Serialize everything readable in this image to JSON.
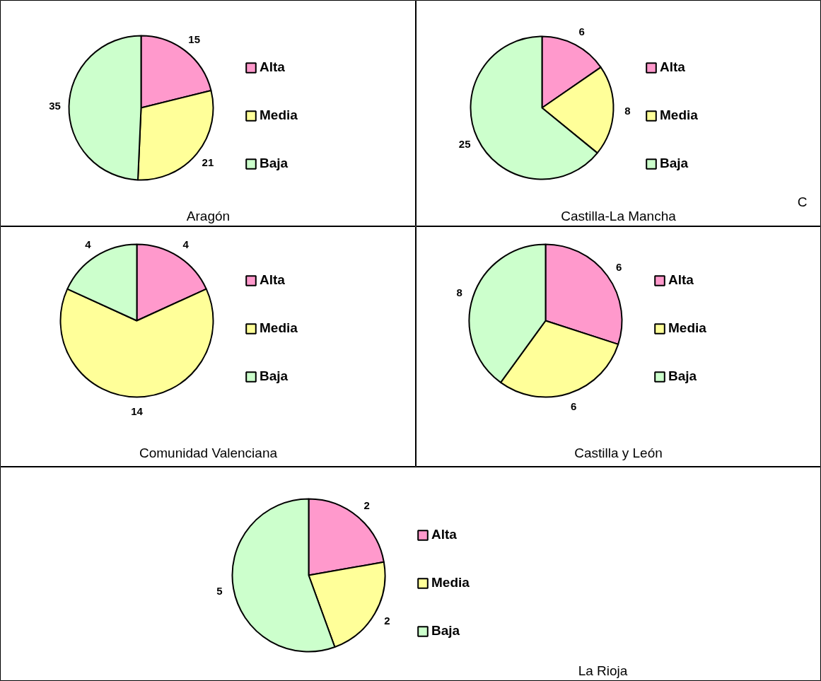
{
  "chart_data": [
    {
      "type": "pie",
      "title": "Aragón",
      "categories": [
        "Alta",
        "Media",
        "Baja"
      ],
      "values": [
        15,
        21,
        35
      ],
      "colors": [
        "#ff99cc",
        "#ffff99",
        "#ccffcc"
      ],
      "legend": "right",
      "data_labels": true
    },
    {
      "type": "pie",
      "title": "Castilla-La Mancha",
      "categories": [
        "Alta",
        "Media",
        "Baja"
      ],
      "values": [
        6,
        8,
        25
      ],
      "colors": [
        "#ff99cc",
        "#ffff99",
        "#ccffcc"
      ],
      "legend": "right",
      "data_labels": true,
      "annotations": [
        "C"
      ]
    },
    {
      "type": "pie",
      "title": "Comunidad Valenciana",
      "categories": [
        "Alta",
        "Media",
        "Baja"
      ],
      "values": [
        4,
        14,
        4
      ],
      "colors": [
        "#ff99cc",
        "#ffff99",
        "#ccffcc"
      ],
      "legend": "right",
      "data_labels": true
    },
    {
      "type": "pie",
      "title": "Castilla y León",
      "categories": [
        "Alta",
        "Media",
        "Baja"
      ],
      "values": [
        6,
        6,
        8
      ],
      "colors": [
        "#ff99cc",
        "#ffff99",
        "#ccffcc"
      ],
      "legend": "right",
      "data_labels": true
    },
    {
      "type": "pie",
      "title": "La Rioja",
      "categories": [
        "Alta",
        "Media",
        "Baja"
      ],
      "values": [
        2,
        2,
        5
      ],
      "colors": [
        "#ff99cc",
        "#ffff99",
        "#ccffcc"
      ],
      "legend": "right",
      "data_labels": true
    }
  ]
}
